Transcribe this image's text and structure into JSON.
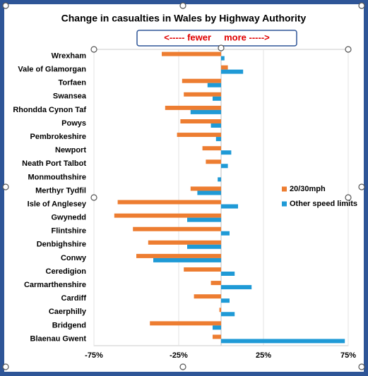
{
  "chart_data": {
    "type": "hbar",
    "title": "Change in casualties in Wales by Highway Authority",
    "annotation": "<----- fewer     more ----->",
    "categories": [
      "Wrexham",
      "Vale of Glamorgan",
      "Torfaen",
      "Swansea",
      "Rhondda Cynon Taf",
      "Powys",
      "Pembrokeshire",
      "Newport",
      "Neath Port Talbot",
      "Monmouthshire",
      "Merthyr Tydfil",
      "Isle of Anglesey",
      "Gwynedd",
      "Flintshire",
      "Denbighshire",
      "Conwy",
      "Ceredigion",
      "Carmarthenshire",
      "Cardiff",
      "Caerphilly",
      "Bridgend",
      "Blaenau Gwent"
    ],
    "series": [
      {
        "name": "20/30mph",
        "color": "#ed7d31",
        "values": [
          -35,
          4,
          -23,
          -22,
          -33,
          -24,
          -26,
          -11,
          -9,
          0,
          -18,
          -61,
          -63,
          -52,
          -43,
          -50,
          -22,
          -6,
          -16,
          -1,
          -42,
          -5
        ]
      },
      {
        "name": "Other speed limits",
        "color": "#1f9ad6",
        "values": [
          2,
          13,
          -8,
          -5,
          -18,
          -6,
          -3,
          6,
          4,
          -2,
          -14,
          10,
          -20,
          5,
          -20,
          -40,
          8,
          18,
          5,
          8,
          -5,
          73
        ]
      }
    ],
    "xlim": [
      -75,
      75
    ],
    "xticks": [
      {
        "value": -75,
        "label": "-75%"
      },
      {
        "value": -25,
        "label": "-25%"
      },
      {
        "value": 25,
        "label": "25%"
      },
      {
        "value": 75,
        "label": "75%"
      }
    ],
    "grid": true,
    "legend_position": "right"
  }
}
